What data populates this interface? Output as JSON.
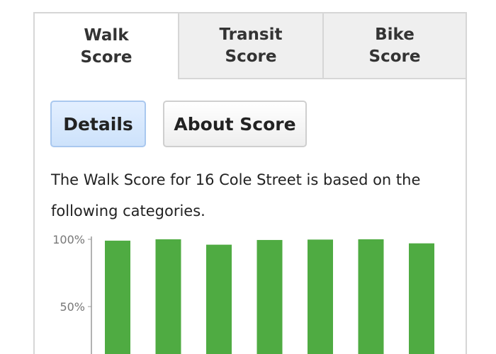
{
  "tabs": [
    {
      "label": "Walk Score",
      "line1": "Walk",
      "line2": "Score",
      "active": true
    },
    {
      "label": "Transit Score",
      "line1": "Transit",
      "line2": "Score",
      "active": false
    },
    {
      "label": "Bike Score",
      "line1": "Bike",
      "line2": "Score",
      "active": false
    }
  ],
  "buttons": {
    "details": "Details",
    "about": "About Score"
  },
  "description": "The Walk Score for 16 Cole Street is based on the following categories.",
  "chart_data": {
    "type": "bar",
    "ylim": [
      0,
      100
    ],
    "yticks": [
      "100%",
      "50%"
    ],
    "ytick_values": [
      100,
      50
    ],
    "values": [
      99,
      100,
      96,
      99.5,
      99.8,
      100,
      97
    ],
    "color": "#4fab42"
  }
}
